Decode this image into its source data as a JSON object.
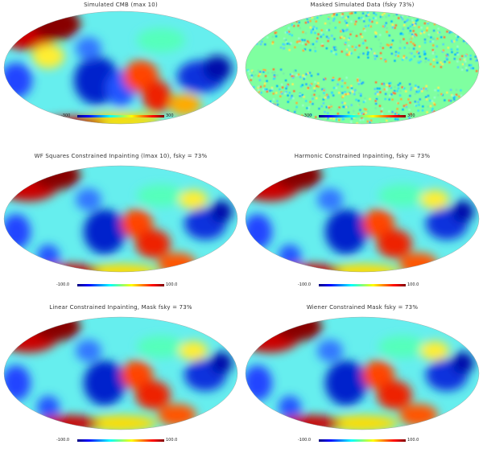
{
  "panels": [
    {
      "title": "Simulated CMB (max 10)",
      "cb_min": "-300",
      "cb_max": "300",
      "kind": "smooth",
      "seed": 1
    },
    {
      "title": "Masked Simulated Data (fsky 73%)",
      "cb_min": "-300",
      "cb_max": "300",
      "kind": "noisy",
      "seed": 2
    },
    {
      "title": "WF Squares Constrained Inpainting (lmax 10), fsky = 73%",
      "cb_min": "-100.0",
      "cb_max": "100.0",
      "kind": "smooth",
      "seed": 3
    },
    {
      "title": "Harmonic Constrained Inpainting, fsky = 73%",
      "cb_min": "-100.0",
      "cb_max": "100.0",
      "kind": "smooth",
      "seed": 3
    },
    {
      "title": "Linear Constrained Inpainting, Mask fsky = 73%",
      "cb_min": "-100.0",
      "cb_max": "100.0",
      "kind": "smooth",
      "seed": 3
    },
    {
      "title": "Wiener Constrained Mask fsky = 73%",
      "cb_min": "-100.0",
      "cb_max": "100.0",
      "kind": "smooth",
      "seed": 3
    }
  ]
}
